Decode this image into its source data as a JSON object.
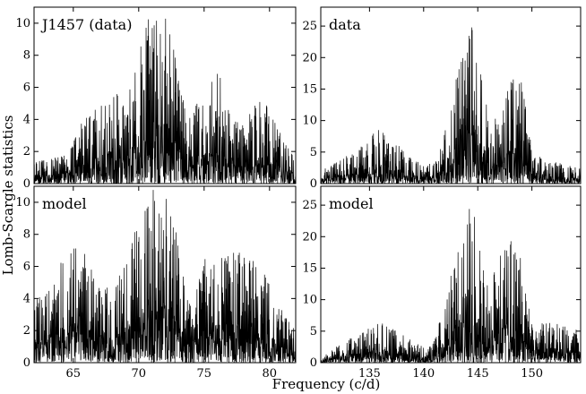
{
  "figure": {
    "xlabel": "Frequency (c/d)",
    "ylabel": "Lomb-Scargle statistics"
  },
  "chart_data": [
    {
      "id": "top-left",
      "type": "line",
      "title": "J1457 (data)",
      "xlim": [
        62,
        82
      ],
      "ylim": [
        0,
        11
      ],
      "xticks": [
        65,
        70,
        75,
        80
      ],
      "yticks": [
        0,
        2,
        4,
        6,
        8,
        10
      ],
      "show_xtick_labels": false,
      "envelope": [
        [
          62,
          1.4
        ],
        [
          64,
          1.7
        ],
        [
          65,
          3.0
        ],
        [
          66,
          4.2
        ],
        [
          67,
          5.3
        ],
        [
          68,
          6.2
        ],
        [
          69,
          5.0
        ],
        [
          70,
          8.5
        ],
        [
          71,
          11.0
        ],
        [
          72,
          11.0
        ],
        [
          72.5,
          10.0
        ],
        [
          73,
          6.5
        ],
        [
          74,
          4.6
        ],
        [
          75,
          5.5
        ],
        [
          76,
          7.5
        ],
        [
          77,
          4.2
        ],
        [
          78,
          3.6
        ],
        [
          79,
          5.2
        ],
        [
          80,
          4.8
        ],
        [
          81,
          2.8
        ],
        [
          82,
          1.5
        ]
      ]
    },
    {
      "id": "top-right",
      "type": "line",
      "title": "data",
      "xlim": [
        130.5,
        154.5
      ],
      "ylim": [
        0,
        28
      ],
      "xticks": [
        135,
        140,
        145,
        150
      ],
      "yticks": [
        0,
        5,
        10,
        15,
        20,
        25
      ],
      "show_xtick_labels": false,
      "envelope": [
        [
          130.5,
          2.0
        ],
        [
          132,
          3.5
        ],
        [
          134,
          5.5
        ],
        [
          136,
          9.5
        ],
        [
          138,
          5.5
        ],
        [
          140,
          3.0
        ],
        [
          141,
          3.5
        ],
        [
          142,
          8.5
        ],
        [
          143,
          17.0
        ],
        [
          144,
          27.0
        ],
        [
          144.5,
          26.0
        ],
        [
          145,
          20.0
        ],
        [
          146,
          12.0
        ],
        [
          147,
          9.5
        ],
        [
          148,
          16.5
        ],
        [
          149,
          17.0
        ],
        [
          150,
          5.5
        ],
        [
          151,
          4.0
        ],
        [
          152,
          3.5
        ],
        [
          154.5,
          2.5
        ]
      ]
    },
    {
      "id": "bottom-left",
      "type": "line",
      "title": "model",
      "xlim": [
        62,
        82
      ],
      "ylim": [
        0,
        11
      ],
      "xticks": [
        65,
        70,
        75,
        80
      ],
      "yticks": [
        0,
        2,
        4,
        6,
        8,
        10
      ],
      "show_xtick_labels": true,
      "envelope": [
        [
          62,
          3.8
        ],
        [
          63,
          4.5
        ],
        [
          64,
          6.2
        ],
        [
          65,
          7.0
        ],
        [
          65.5,
          8.7
        ],
        [
          66,
          6.5
        ],
        [
          67,
          5.0
        ],
        [
          68,
          4.5
        ],
        [
          69,
          6.8
        ],
        [
          70,
          9.0
        ],
        [
          70.8,
          11.0
        ],
        [
          71.5,
          10.5
        ],
        [
          72.3,
          11.0
        ],
        [
          73,
          7.5
        ],
        [
          74,
          4.0
        ],
        [
          75,
          6.5
        ],
        [
          76,
          6.8
        ],
        [
          77,
          7.0
        ],
        [
          78,
          6.8
        ],
        [
          79,
          6.2
        ],
        [
          80,
          5.2
        ],
        [
          81,
          3.2
        ],
        [
          82,
          2.0
        ]
      ]
    },
    {
      "id": "bottom-right",
      "type": "line",
      "title": "model",
      "xlim": [
        130.5,
        154.5
      ],
      "ylim": [
        0,
        28
      ],
      "xticks": [
        135,
        140,
        145,
        150
      ],
      "yticks": [
        0,
        5,
        10,
        15,
        20,
        25
      ],
      "show_xtick_labels": true,
      "envelope": [
        [
          130.5,
          0.5
        ],
        [
          132,
          3.0
        ],
        [
          134,
          4.5
        ],
        [
          136,
          6.5
        ],
        [
          138,
          4.5
        ],
        [
          140,
          2.5
        ],
        [
          141,
          3.5
        ],
        [
          142,
          10.0
        ],
        [
          143,
          18.0
        ],
        [
          144,
          23.0
        ],
        [
          144.5,
          27.5
        ],
        [
          145,
          21.0
        ],
        [
          146,
          14.0
        ],
        [
          147,
          18.0
        ],
        [
          148,
          19.5
        ],
        [
          149,
          17.5
        ],
        [
          150,
          6.0
        ],
        [
          152,
          6.5
        ],
        [
          154.5,
          5.0
        ]
      ]
    }
  ]
}
